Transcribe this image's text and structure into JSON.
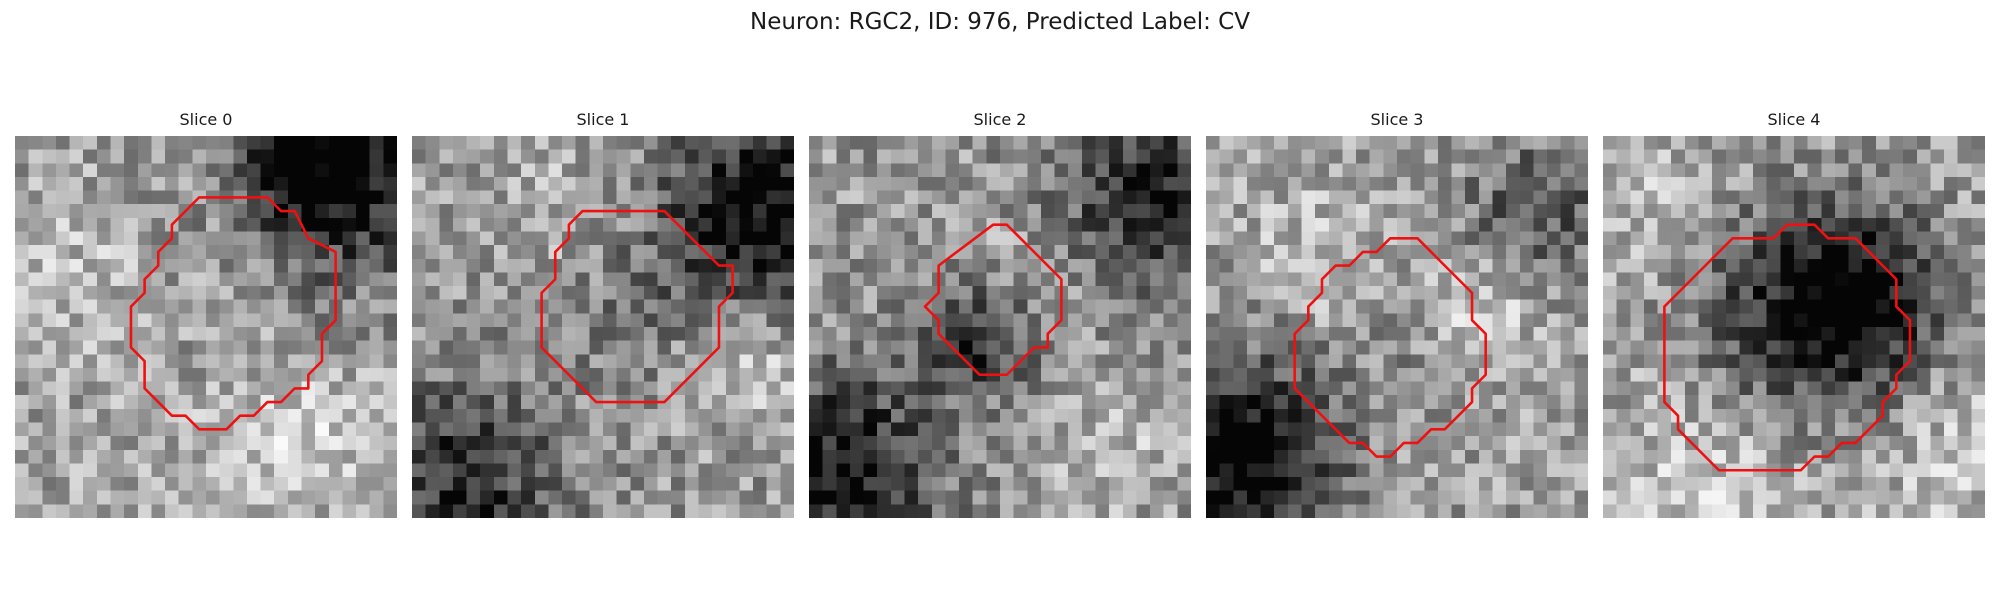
{
  "figure": {
    "title": "Neuron: RGC2, ID: 976, Predicted Label: CV"
  },
  "colormap": "gray",
  "contour_color": "#ee1111",
  "grid_size": 28,
  "panels": [
    {
      "title": "Slice 0",
      "seed": 11,
      "blobs": [
        {
          "cx": 24,
          "cy": 3,
          "r": 5,
          "a": -0.55
        },
        {
          "cx": 20,
          "cy": 1,
          "r": 3,
          "a": -0.35
        },
        {
          "cx": 3,
          "cy": 10,
          "r": 4,
          "a": 0.12
        },
        {
          "cx": 20,
          "cy": 22,
          "r": 4,
          "a": 0.18
        },
        {
          "cx": 9,
          "cy": 26,
          "r": 5,
          "a": 0.05
        }
      ],
      "bias": 0.62,
      "contour": [
        [
          13.5,
          4.5
        ],
        [
          18.5,
          4.5
        ],
        [
          19.5,
          5.5
        ],
        [
          20.5,
          5.5
        ],
        [
          21.5,
          7.5
        ],
        [
          23.5,
          8.5
        ],
        [
          23.5,
          13.5
        ],
        [
          22.5,
          14.5
        ],
        [
          22.5,
          16.5
        ],
        [
          21.5,
          17.5
        ],
        [
          21.5,
          18.5
        ],
        [
          20.5,
          18.5
        ],
        [
          19.5,
          19.5
        ],
        [
          18.5,
          19.5
        ],
        [
          17.5,
          20.5
        ],
        [
          16.5,
          20.5
        ],
        [
          15.5,
          21.5
        ],
        [
          13.5,
          21.5
        ],
        [
          12.5,
          20.5
        ],
        [
          11.5,
          20.5
        ],
        [
          10.5,
          19.5
        ],
        [
          9.5,
          18.5
        ],
        [
          9.5,
          17.5
        ],
        [
          9.5,
          16.5
        ],
        [
          8.5,
          15.5
        ],
        [
          8.5,
          13.5
        ],
        [
          8.5,
          12.5
        ],
        [
          9.5,
          11.5
        ],
        [
          9.5,
          10.5
        ],
        [
          10.5,
          9.5
        ],
        [
          10.5,
          8.5
        ],
        [
          11.5,
          7.5
        ],
        [
          11.5,
          6.5
        ],
        [
          12.5,
          5.5
        ]
      ]
    },
    {
      "title": "Slice 1",
      "seed": 23,
      "blobs": [
        {
          "cx": 25,
          "cy": 5,
          "r": 5,
          "a": -0.6
        },
        {
          "cx": 3,
          "cy": 25,
          "r": 5,
          "a": -0.45
        },
        {
          "cx": 15,
          "cy": 12,
          "r": 4,
          "a": -0.12
        },
        {
          "cx": 24,
          "cy": 16,
          "r": 3,
          "a": 0.2
        },
        {
          "cx": 10,
          "cy": 5,
          "r": 4,
          "a": 0.1
        }
      ],
      "bias": 0.6,
      "contour": [
        [
          12.5,
          5.5
        ],
        [
          18.5,
          5.5
        ],
        [
          22.5,
          9.5
        ],
        [
          23.5,
          9.5
        ],
        [
          23.5,
          10.5
        ],
        [
          23.5,
          11.5
        ],
        [
          22.5,
          12.5
        ],
        [
          22.5,
          15.5
        ],
        [
          18.5,
          19.5
        ],
        [
          13.5,
          19.5
        ],
        [
          9.5,
          15.5
        ],
        [
          9.5,
          11.5
        ],
        [
          10.5,
          10.5
        ],
        [
          10.5,
          8.5
        ],
        [
          11.5,
          7.5
        ],
        [
          11.5,
          6.5
        ]
      ]
    },
    {
      "title": "Slice 2",
      "seed": 37,
      "blobs": [
        {
          "cx": 25,
          "cy": 4,
          "r": 5,
          "a": -0.5
        },
        {
          "cx": 2,
          "cy": 24,
          "r": 5,
          "a": -0.55
        },
        {
          "cx": 12,
          "cy": 14,
          "r": 3,
          "a": -0.45
        },
        {
          "cx": 15,
          "cy": 10,
          "r": 3,
          "a": 0.15
        },
        {
          "cx": 22,
          "cy": 22,
          "r": 4,
          "a": 0.12
        }
      ],
      "bias": 0.6,
      "contour": [
        [
          13.5,
          6.5
        ],
        [
          14.5,
          6.5
        ],
        [
          18.5,
          10.5
        ],
        [
          18.5,
          13.5
        ],
        [
          17.5,
          14.5
        ],
        [
          17.5,
          15.5
        ],
        [
          16.5,
          15.5
        ],
        [
          15.5,
          16.5
        ],
        [
          14.5,
          17.5
        ],
        [
          12.5,
          17.5
        ],
        [
          10.5,
          15.5
        ],
        [
          9.5,
          14.5
        ],
        [
          9.5,
          13.5
        ],
        [
          8.5,
          12.5
        ],
        [
          9.5,
          11.5
        ],
        [
          9.5,
          9.5
        ]
      ]
    },
    {
      "title": "Slice 3",
      "seed": 51,
      "blobs": [
        {
          "cx": 2,
          "cy": 23,
          "r": 5,
          "a": -0.7
        },
        {
          "cx": 24,
          "cy": 5,
          "r": 4,
          "a": -0.3
        },
        {
          "cx": 14,
          "cy": 14,
          "r": 3,
          "a": -0.08
        },
        {
          "cx": 20,
          "cy": 12,
          "r": 3,
          "a": 0.2
        },
        {
          "cx": 8,
          "cy": 8,
          "r": 4,
          "a": 0.12
        }
      ],
      "bias": 0.62,
      "contour": [
        [
          13.5,
          7.5
        ],
        [
          15.5,
          7.5
        ],
        [
          16.5,
          8.5
        ],
        [
          17.5,
          9.5
        ],
        [
          18.5,
          10.5
        ],
        [
          19.5,
          11.5
        ],
        [
          19.5,
          12.5
        ],
        [
          19.5,
          13.5
        ],
        [
          20.5,
          14.5
        ],
        [
          20.5,
          17.5
        ],
        [
          19.5,
          18.5
        ],
        [
          19.5,
          19.5
        ],
        [
          18.5,
          20.5
        ],
        [
          17.5,
          21.5
        ],
        [
          16.5,
          21.5
        ],
        [
          15.5,
          22.5
        ],
        [
          14.5,
          22.5
        ],
        [
          13.5,
          23.5
        ],
        [
          12.5,
          23.5
        ],
        [
          11.5,
          22.5
        ],
        [
          10.5,
          22.5
        ],
        [
          8.5,
          20.5
        ],
        [
          7.5,
          19.5
        ],
        [
          6.5,
          18.5
        ],
        [
          6.5,
          14.5
        ],
        [
          7.5,
          13.5
        ],
        [
          7.5,
          12.5
        ],
        [
          8.5,
          11.5
        ],
        [
          8.5,
          10.5
        ],
        [
          9.5,
          9.5
        ],
        [
          10.5,
          9.5
        ],
        [
          11.5,
          8.5
        ],
        [
          12.5,
          8.5
        ]
      ]
    },
    {
      "title": "Slice 4",
      "seed": 67,
      "blobs": [
        {
          "cx": 15,
          "cy": 12,
          "r": 6,
          "a": -0.55
        },
        {
          "cx": 19,
          "cy": 11,
          "r": 4,
          "a": -0.3
        },
        {
          "cx": 8,
          "cy": 24,
          "r": 4,
          "a": 0.15
        },
        {
          "cx": 4,
          "cy": 5,
          "r": 4,
          "a": 0.1
        },
        {
          "cx": 25,
          "cy": 22,
          "r": 4,
          "a": 0.12
        }
      ],
      "bias": 0.66,
      "contour": [
        [
          10.5,
          7.5
        ],
        [
          12.5,
          7.5
        ],
        [
          13.5,
          6.5
        ],
        [
          15.5,
          6.5
        ],
        [
          16.5,
          7.5
        ],
        [
          18.5,
          7.5
        ],
        [
          19.5,
          8.5
        ],
        [
          20.5,
          9.5
        ],
        [
          21.5,
          10.5
        ],
        [
          21.5,
          11.5
        ],
        [
          21.5,
          12.5
        ],
        [
          22.5,
          13.5
        ],
        [
          22.5,
          16.5
        ],
        [
          21.5,
          17.5
        ],
        [
          21.5,
          18.5
        ],
        [
          20.5,
          19.5
        ],
        [
          20.5,
          20.5
        ],
        [
          19.5,
          21.5
        ],
        [
          18.5,
          22.5
        ],
        [
          17.5,
          22.5
        ],
        [
          16.5,
          23.5
        ],
        [
          15.5,
          23.5
        ],
        [
          14.5,
          24.5
        ],
        [
          8.5,
          24.5
        ],
        [
          7.5,
          23.5
        ],
        [
          6.5,
          22.5
        ],
        [
          5.5,
          21.5
        ],
        [
          5.5,
          20.5
        ],
        [
          4.5,
          19.5
        ],
        [
          4.5,
          12.5
        ],
        [
          5.5,
          11.5
        ],
        [
          6.5,
          10.5
        ],
        [
          7.5,
          9.5
        ],
        [
          8.5,
          8.5
        ],
        [
          9.5,
          7.5
        ]
      ]
    }
  ]
}
